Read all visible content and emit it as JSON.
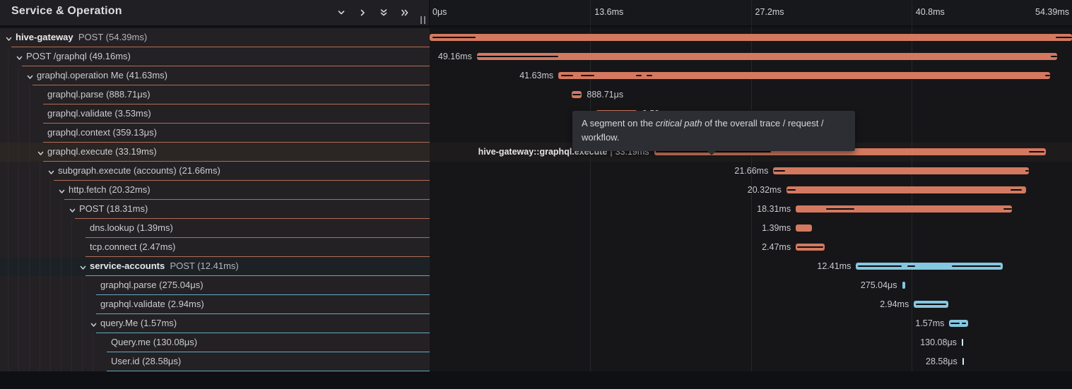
{
  "header": {
    "title": "Service & Operation",
    "controls": [
      {
        "name": "collapse-one",
        "icon": "chevron-down-icon"
      },
      {
        "name": "expand-one",
        "icon": "chevron-right-icon"
      },
      {
        "name": "collapse-all",
        "icon": "double-chevron-down-icon"
      },
      {
        "name": "expand-all",
        "icon": "double-chevron-right-icon"
      }
    ]
  },
  "timeline": {
    "total_ms": 54.39,
    "ticks": [
      {
        "label": "0μs",
        "pos_pct": 0,
        "align": "left"
      },
      {
        "label": "13.6ms",
        "pos_pct": 25,
        "align": "left"
      },
      {
        "label": "27.2ms",
        "pos_pct": 50,
        "align": "left"
      },
      {
        "label": "40.8ms",
        "pos_pct": 75,
        "align": "left"
      },
      {
        "label": "54.39ms",
        "pos_pct": 100,
        "align": "right"
      }
    ],
    "gridline_pcts": [
      25,
      50,
      75
    ]
  },
  "tooltip": {
    "before": "A segment on the ",
    "italic": "critical path",
    "after": " of the overall trace / request / workflow."
  },
  "colors": {
    "salmon": "#d4795f",
    "blue": "#85c7e0",
    "tick_mark": "#cfe9f3",
    "critical": "#0d0e11",
    "underline_salmon": "#c97a5e",
    "underline_blue": "#6fc2de"
  },
  "rows": [
    {
      "service": "hive-gateway",
      "name": "",
      "op": "POST (54.39ms)",
      "level": 0,
      "expandable": true,
      "theme": "salmon",
      "highlight": null,
      "bar": {
        "start_ms": 0,
        "duration_ms": 54.39,
        "shape": "bar"
      },
      "duration_label": null,
      "critical": [
        [
          0.004,
          0.072
        ],
        [
          0.975,
          1
        ]
      ]
    },
    {
      "name": "POST /graphql (49.16ms)",
      "level": 1,
      "expandable": true,
      "theme": "salmon",
      "highlight": null,
      "bar": {
        "start_ms": 4.0,
        "duration_ms": 49.16,
        "shape": "bar"
      },
      "duration_label": {
        "text": "49.16ms",
        "side": "left"
      },
      "critical": [
        [
          0,
          0.14
        ],
        [
          0.988,
          1
        ]
      ]
    },
    {
      "name": "graphql.operation Me (41.63ms)",
      "level": 2,
      "expandable": true,
      "theme": "salmon",
      "highlight": null,
      "bar": {
        "start_ms": 10.9,
        "duration_ms": 41.63,
        "shape": "bar"
      },
      "duration_label": {
        "text": "41.63ms",
        "side": "left"
      },
      "critical": [
        [
          0.005,
          0.03
        ],
        [
          0.046,
          0.073
        ],
        [
          0.158,
          0.169
        ],
        [
          0.179,
          0.191
        ],
        [
          0.99,
          1
        ]
      ]
    },
    {
      "name": "graphql.parse (888.71μs)",
      "level": 3,
      "expandable": false,
      "theme": "salmon",
      "highlight": null,
      "bar": {
        "start_ms": 12.0,
        "duration_ms": 0.889,
        "shape": "bar"
      },
      "duration_label": {
        "text": "888.71μs",
        "side": "right"
      },
      "critical": [
        [
          0.08,
          0.92
        ]
      ]
    },
    {
      "name": "graphql.validate (3.53ms)",
      "level": 3,
      "expandable": false,
      "theme": "salmon",
      "highlight": null,
      "bar": {
        "start_ms": 14.05,
        "duration_ms": 3.53,
        "shape": "bar"
      },
      "duration_label": {
        "text": "3.53ms",
        "side": "right"
      },
      "critical": []
    },
    {
      "name": "graphql.context (359.13μs)",
      "level": 3,
      "expandable": false,
      "theme": "salmon",
      "highlight": null,
      "bar": {
        "start_ms": 17.7,
        "duration_ms": 0.359,
        "shape": "bar"
      },
      "duration_label": {
        "text": "359.13μs",
        "side": "right"
      },
      "critical": []
    },
    {
      "name": "graphql.execute (33.19ms)",
      "level": 3,
      "expandable": true,
      "theme": "salmon",
      "highlight": "warm",
      "bar": {
        "start_ms": 19.0,
        "duration_ms": 33.19,
        "shape": "bar"
      },
      "duration_label": {
        "bold": "hive-gateway::graphql.execute",
        "sep": "|",
        "text": "33.19ms",
        "side": "left"
      },
      "critical": [
        [
          0.004,
          0.298
        ],
        [
          0.957,
          0.996
        ]
      ]
    },
    {
      "name": "subgraph.execute (accounts) (21.66ms)",
      "level": 4,
      "expandable": true,
      "theme": "salmon",
      "highlight": null,
      "bar": {
        "start_ms": 29.1,
        "duration_ms": 21.66,
        "shape": "bar"
      },
      "duration_label": {
        "text": "21.66ms",
        "side": "left"
      },
      "critical": [
        [
          0.003,
          0.045
        ],
        [
          0.984,
          1
        ]
      ]
    },
    {
      "name": "http.fetch (20.32ms)",
      "level": 5,
      "expandable": true,
      "theme": "salmon",
      "highlight": null,
      "bar": {
        "start_ms": 30.2,
        "duration_ms": 20.32,
        "shape": "bar"
      },
      "duration_label": {
        "text": "20.32ms",
        "side": "left"
      },
      "critical": [
        [
          0.003,
          0.04
        ],
        [
          0.933,
          0.98
        ]
      ]
    },
    {
      "name": "POST (18.31ms)",
      "level": 6,
      "expandable": true,
      "theme": "salmon",
      "highlight": null,
      "bar": {
        "start_ms": 31.0,
        "duration_ms": 18.31,
        "shape": "bar"
      },
      "duration_label": {
        "text": "18.31ms",
        "side": "left"
      },
      "critical": [
        [
          0.14,
          0.27
        ],
        [
          0.96,
          1
        ]
      ]
    },
    {
      "name": "dns.lookup (1.39ms)",
      "level": 7,
      "expandable": false,
      "theme": "salmon",
      "highlight": null,
      "bar": {
        "start_ms": 31.0,
        "duration_ms": 1.39,
        "shape": "bar"
      },
      "duration_label": {
        "text": "1.39ms",
        "side": "left"
      },
      "critical": []
    },
    {
      "name": "tcp.connect (2.47ms)",
      "level": 7,
      "expandable": false,
      "theme": "salmon",
      "highlight": null,
      "bar": {
        "start_ms": 31.0,
        "duration_ms": 2.47,
        "shape": "bar"
      },
      "duration_label": {
        "text": "2.47ms",
        "side": "left"
      },
      "critical": [
        [
          0.05,
          0.95
        ]
      ]
    },
    {
      "service": "service-accounts",
      "name": "",
      "op": "POST (12.41ms)",
      "level": 7,
      "expandable": true,
      "theme": "blue",
      "highlight": "cool",
      "bar": {
        "start_ms": 36.1,
        "duration_ms": 12.41,
        "shape": "bar"
      },
      "duration_label": {
        "text": "12.41ms",
        "side": "left"
      },
      "critical": [
        [
          0.012,
          0.31
        ],
        [
          0.35,
          0.405
        ],
        [
          0.655,
          0.985
        ]
      ]
    },
    {
      "name": "graphql.parse (275.04μs)",
      "level": 8,
      "expandable": false,
      "theme": "blue",
      "highlight": null,
      "bar": {
        "start_ms": 40.0,
        "duration_ms": 0.275,
        "shape": "bar"
      },
      "duration_label": {
        "text": "275.04μs",
        "side": "left"
      },
      "critical": []
    },
    {
      "name": "graphql.validate (2.94ms)",
      "level": 8,
      "expandable": false,
      "theme": "blue",
      "highlight": null,
      "bar": {
        "start_ms": 41.0,
        "duration_ms": 2.94,
        "shape": "bar"
      },
      "duration_label": {
        "text": "2.94ms",
        "side": "left"
      },
      "critical": [
        [
          0.06,
          0.94
        ]
      ]
    },
    {
      "name": "query.Me (1.57ms)",
      "level": 8,
      "expandable": true,
      "theme": "blue",
      "highlight": null,
      "bar": {
        "start_ms": 44.0,
        "duration_ms": 1.57,
        "shape": "bar"
      },
      "duration_label": {
        "text": "1.57ms",
        "side": "left"
      },
      "critical": [
        [
          0.06,
          0.55
        ],
        [
          0.66,
          0.9
        ]
      ]
    },
    {
      "name": "Query.me (130.08μs)",
      "level": 9,
      "expandable": false,
      "theme": "blue",
      "highlight": null,
      "bar": {
        "start_ms": 45.05,
        "duration_ms": 0.13,
        "shape": "tick"
      },
      "duration_label": {
        "text": "130.08μs",
        "side": "left"
      },
      "critical": []
    },
    {
      "name": "User.id (28.58μs)",
      "level": 9,
      "expandable": false,
      "theme": "blue",
      "highlight": null,
      "bar": {
        "start_ms": 45.1,
        "duration_ms": 0.0286,
        "shape": "tick"
      },
      "duration_label": {
        "text": "28.58μs",
        "side": "left"
      },
      "critical": []
    }
  ]
}
